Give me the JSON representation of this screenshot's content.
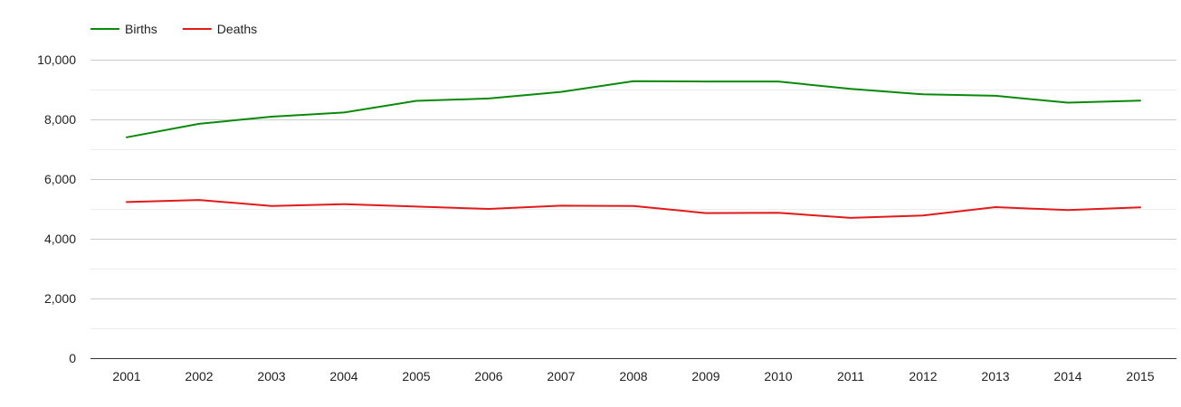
{
  "chart_data": {
    "type": "line",
    "title": "",
    "xlabel": "",
    "ylabel": "",
    "x": [
      "2001",
      "2002",
      "2003",
      "2004",
      "2005",
      "2006",
      "2007",
      "2008",
      "2009",
      "2010",
      "2011",
      "2012",
      "2013",
      "2014",
      "2015"
    ],
    "series": [
      {
        "name": "Births",
        "color": "#0a8a0a",
        "values": [
          7400,
          7850,
          8090,
          8230,
          8620,
          8700,
          8920,
          9280,
          9270,
          9270,
          9020,
          8840,
          8790,
          8560,
          8630
        ]
      },
      {
        "name": "Deaths",
        "color": "#e31a1a",
        "values": [
          5230,
          5300,
          5100,
          5160,
          5080,
          5000,
          5110,
          5100,
          4860,
          4870,
          4700,
          4780,
          5060,
          4960,
          5050
        ]
      }
    ],
    "ylim": [
      0,
      10000
    ],
    "yticks": [
      0,
      2000,
      4000,
      6000,
      8000,
      10000
    ],
    "ytick_labels": [
      "0",
      "2,000",
      "4,000",
      "6,000",
      "8,000",
      "10,000"
    ],
    "minor_gridlines": true,
    "grid": true,
    "legend_position": "top-left"
  }
}
